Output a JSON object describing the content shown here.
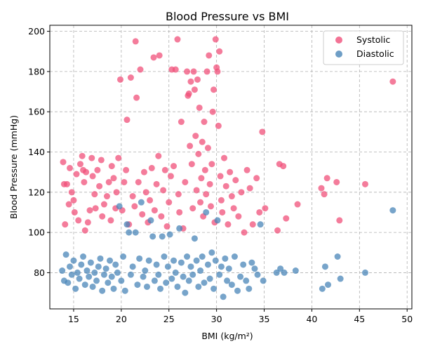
{
  "chart_data": {
    "type": "scatter",
    "title": "Blood Pressure vs BMI",
    "xlabel": "BMI (kg/m²)",
    "ylabel": "Blood Pressure (mmHg)",
    "xlim": [
      12.5,
      50.5
    ],
    "ylim": [
      62,
      203
    ],
    "xticks": [
      15,
      20,
      25,
      30,
      35,
      40,
      45,
      50
    ],
    "yticks": [
      80,
      100,
      120,
      140,
      160,
      180,
      200
    ],
    "grid": true,
    "legend": "top-right",
    "colors": {
      "systolic": "#f0507a",
      "diastolic": "#4a86b8"
    },
    "series": [
      {
        "name": "Systolic",
        "color": "#f0507a",
        "points": [
          [
            13.9,
            135
          ],
          [
            14.0,
            124
          ],
          [
            14.1,
            104
          ],
          [
            14.3,
            124
          ],
          [
            14.5,
            114
          ],
          [
            14.6,
            132
          ],
          [
            14.8,
            120
          ],
          [
            15.0,
            116
          ],
          [
            15.1,
            110
          ],
          [
            15.3,
            129
          ],
          [
            15.5,
            106
          ],
          [
            15.7,
            134
          ],
          [
            15.9,
            138
          ],
          [
            16.0,
            131
          ],
          [
            16.1,
            125
          ],
          [
            16.2,
            101
          ],
          [
            16.3,
            130
          ],
          [
            16.5,
            105
          ],
          [
            16.7,
            111
          ],
          [
            16.9,
            137
          ],
          [
            17.0,
            128
          ],
          [
            17.2,
            119
          ],
          [
            17.3,
            112
          ],
          [
            17.5,
            131
          ],
          [
            17.7,
            123
          ],
          [
            17.9,
            136
          ],
          [
            18.0,
            108
          ],
          [
            18.2,
            114
          ],
          [
            18.5,
            118
          ],
          [
            18.7,
            125
          ],
          [
            18.9,
            106
          ],
          [
            19.0,
            133
          ],
          [
            19.2,
            127
          ],
          [
            19.4,
            112
          ],
          [
            19.5,
            120
          ],
          [
            19.7,
            137
          ],
          [
            19.9,
            176
          ],
          [
            20.1,
            111
          ],
          [
            20.3,
            125
          ],
          [
            20.5,
            131
          ],
          [
            20.6,
            156
          ],
          [
            20.8,
            104
          ],
          [
            21.0,
            177
          ],
          [
            21.2,
            118
          ],
          [
            21.4,
            113
          ],
          [
            21.5,
            195
          ],
          [
            21.6,
            167
          ],
          [
            21.8,
            125
          ],
          [
            22.0,
            181
          ],
          [
            22.2,
            109
          ],
          [
            22.4,
            130
          ],
          [
            22.6,
            120
          ],
          [
            22.8,
            105
          ],
          [
            23.0,
            116
          ],
          [
            23.2,
            132
          ],
          [
            23.4,
            187
          ],
          [
            23.5,
            111
          ],
          [
            23.7,
            124
          ],
          [
            23.9,
            138
          ],
          [
            24.0,
            188
          ],
          [
            24.2,
            108
          ],
          [
            24.4,
            121
          ],
          [
            24.6,
            131
          ],
          [
            24.8,
            103
          ],
          [
            25.0,
            115
          ],
          [
            25.2,
            128
          ],
          [
            25.3,
            181
          ],
          [
            25.5,
            133
          ],
          [
            25.7,
            181
          ],
          [
            25.9,
            196
          ],
          [
            26.0,
            119
          ],
          [
            26.1,
            110
          ],
          [
            26.3,
            155
          ],
          [
            26.5,
            102
          ],
          [
            26.7,
            125
          ],
          [
            26.9,
            180
          ],
          [
            27.0,
            168
          ],
          [
            27.1,
            169
          ],
          [
            27.2,
            143
          ],
          [
            27.3,
            175
          ],
          [
            27.4,
            134
          ],
          [
            27.5,
            112
          ],
          [
            27.6,
            180
          ],
          [
            27.7,
            171
          ],
          [
            27.8,
            148
          ],
          [
            27.9,
            121
          ],
          [
            28.0,
            176
          ],
          [
            28.1,
            139
          ],
          [
            28.2,
            162
          ],
          [
            28.3,
            115
          ],
          [
            28.4,
            127
          ],
          [
            28.5,
            145
          ],
          [
            28.6,
            108
          ],
          [
            28.7,
            155
          ],
          [
            28.8,
            131
          ],
          [
            28.9,
            119
          ],
          [
            29.0,
            180
          ],
          [
            29.1,
            142
          ],
          [
            29.2,
            188
          ],
          [
            29.3,
            124
          ],
          [
            29.4,
            113
          ],
          [
            29.5,
            134
          ],
          [
            29.6,
            160
          ],
          [
            29.7,
            171
          ],
          [
            29.8,
            105
          ],
          [
            29.9,
            196
          ],
          [
            30.0,
            182
          ],
          [
            30.1,
            180
          ],
          [
            30.2,
            153
          ],
          [
            30.3,
            190
          ],
          [
            30.4,
            128
          ],
          [
            30.5,
            116
          ],
          [
            30.6,
            110
          ],
          [
            30.8,
            137
          ],
          [
            31.0,
            123
          ],
          [
            31.2,
            104
          ],
          [
            31.4,
            130
          ],
          [
            31.6,
            118
          ],
          [
            31.8,
            112
          ],
          [
            32.0,
            126
          ],
          [
            32.3,
            108
          ],
          [
            32.6,
            120
          ],
          [
            32.9,
            100
          ],
          [
            33.2,
            131
          ],
          [
            33.5,
            122
          ],
          [
            33.8,
            104
          ],
          [
            34.2,
            127
          ],
          [
            34.5,
            110
          ],
          [
            34.8,
            150
          ],
          [
            35.1,
            112
          ],
          [
            36.4,
            101
          ],
          [
            36.6,
            134
          ],
          [
            37.0,
            133
          ],
          [
            37.3,
            107
          ],
          [
            38.5,
            114
          ],
          [
            41.0,
            122
          ],
          [
            41.3,
            119
          ],
          [
            41.6,
            127
          ],
          [
            42.6,
            125
          ],
          [
            42.9,
            106
          ],
          [
            45.6,
            124
          ],
          [
            48.5,
            175
          ]
        ]
      },
      {
        "name": "Diastolic",
        "color": "#4a86b8",
        "points": [
          [
            13.8,
            81
          ],
          [
            14.0,
            76
          ],
          [
            14.2,
            89
          ],
          [
            14.4,
            75
          ],
          [
            14.6,
            83
          ],
          [
            14.8,
            79
          ],
          [
            15.0,
            86
          ],
          [
            15.2,
            72
          ],
          [
            15.4,
            80
          ],
          [
            15.6,
            77
          ],
          [
            15.8,
            84
          ],
          [
            16.0,
            88
          ],
          [
            16.2,
            74
          ],
          [
            16.4,
            81
          ],
          [
            16.6,
            78
          ],
          [
            16.8,
            85
          ],
          [
            17.0,
            73
          ],
          [
            17.2,
            80
          ],
          [
            17.4,
            76
          ],
          [
            17.6,
            83
          ],
          [
            17.8,
            87
          ],
          [
            18.0,
            71
          ],
          [
            18.2,
            79
          ],
          [
            18.4,
            82
          ],
          [
            18.6,
            75
          ],
          [
            18.8,
            86
          ],
          [
            19.0,
            78
          ],
          [
            19.2,
            72
          ],
          [
            19.4,
            84
          ],
          [
            19.6,
            80
          ],
          [
            19.8,
            113
          ],
          [
            20.0,
            76
          ],
          [
            20.2,
            88
          ],
          [
            20.4,
            71
          ],
          [
            20.6,
            104
          ],
          [
            20.8,
            100
          ],
          [
            21.0,
            79
          ],
          [
            21.2,
            83
          ],
          [
            21.5,
            100
          ],
          [
            21.7,
            74
          ],
          [
            21.9,
            87
          ],
          [
            22.1,
            115
          ],
          [
            22.3,
            78
          ],
          [
            22.5,
            81
          ],
          [
            22.7,
            73
          ],
          [
            22.9,
            86
          ],
          [
            23.1,
            106
          ],
          [
            23.3,
            98
          ],
          [
            23.5,
            76
          ],
          [
            23.7,
            84
          ],
          [
            23.9,
            79
          ],
          [
            24.1,
            72
          ],
          [
            24.3,
            98
          ],
          [
            24.5,
            88
          ],
          [
            24.7,
            75
          ],
          [
            24.9,
            83
          ],
          [
            25.1,
            99
          ],
          [
            25.3,
            77
          ],
          [
            25.5,
            86
          ],
          [
            25.7,
            80
          ],
          [
            25.9,
            73
          ],
          [
            26.1,
            102
          ],
          [
            26.3,
            85
          ],
          [
            26.5,
            78
          ],
          [
            26.7,
            70
          ],
          [
            26.9,
            88
          ],
          [
            27.1,
            76
          ],
          [
            27.3,
            83
          ],
          [
            27.5,
            79
          ],
          [
            27.7,
            97
          ],
          [
            27.9,
            86
          ],
          [
            28.1,
            73
          ],
          [
            28.3,
            81
          ],
          [
            28.5,
            88
          ],
          [
            28.7,
            75
          ],
          [
            28.9,
            110
          ],
          [
            29.1,
            84
          ],
          [
            29.3,
            77
          ],
          [
            29.5,
            90
          ],
          [
            29.7,
            72
          ],
          [
            29.9,
            86
          ],
          [
            30.1,
            106
          ],
          [
            30.3,
            79
          ],
          [
            30.5,
            83
          ],
          [
            30.7,
            68
          ],
          [
            30.9,
            87
          ],
          [
            31.1,
            76
          ],
          [
            31.3,
            82
          ],
          [
            31.6,
            74
          ],
          [
            31.9,
            88
          ],
          [
            32.2,
            71
          ],
          [
            32.5,
            78
          ],
          [
            32.8,
            84
          ],
          [
            33.1,
            76
          ],
          [
            33.4,
            72
          ],
          [
            33.7,
            85
          ],
          [
            34.0,
            82
          ],
          [
            34.3,
            79
          ],
          [
            34.6,
            104
          ],
          [
            34.9,
            76
          ],
          [
            36.3,
            80
          ],
          [
            36.7,
            82
          ],
          [
            37.1,
            80
          ],
          [
            38.3,
            81
          ],
          [
            41.1,
            72
          ],
          [
            41.4,
            83
          ],
          [
            41.7,
            74
          ],
          [
            42.7,
            88
          ],
          [
            43.0,
            77
          ],
          [
            45.6,
            80
          ],
          [
            48.5,
            111
          ]
        ]
      }
    ]
  }
}
